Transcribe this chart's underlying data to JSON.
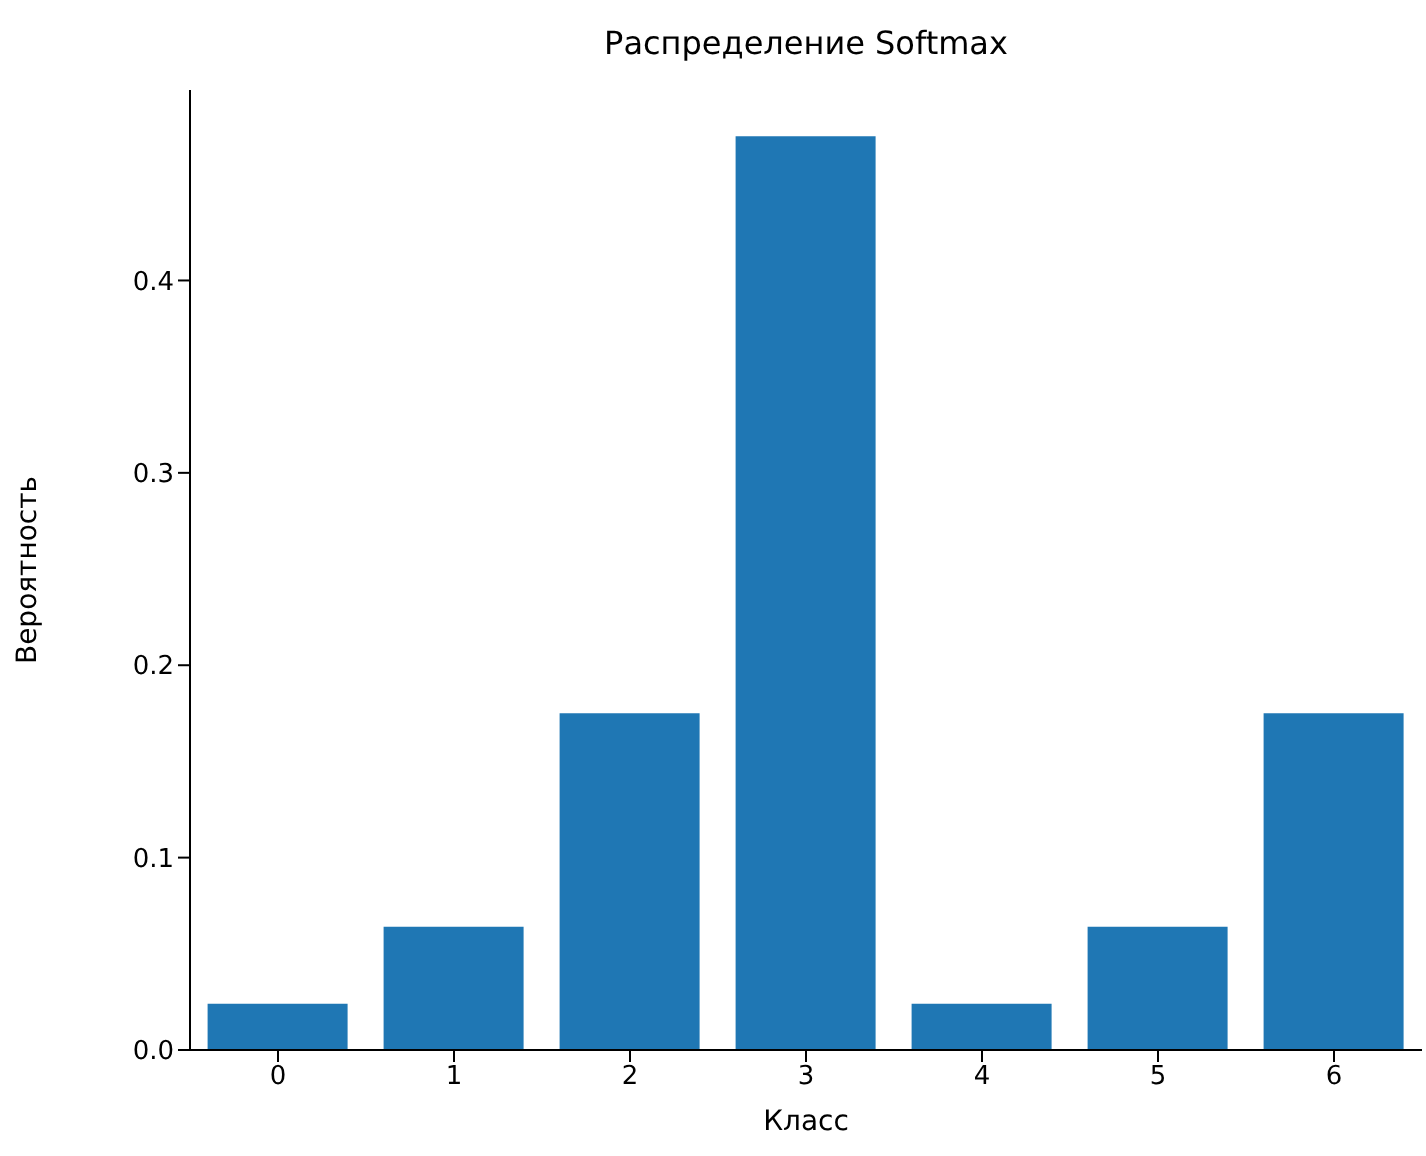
{
  "chart_data": {
    "type": "bar",
    "title": "Распределение Softmax",
    "xlabel": "Класс",
    "ylabel": "Вероятность",
    "categories": [
      "0",
      "1",
      "2",
      "3",
      "4",
      "5",
      "6"
    ],
    "values": [
      0.024,
      0.064,
      0.175,
      0.475,
      0.024,
      0.064,
      0.175
    ],
    "color": "#1f77b4",
    "ylim": [
      0,
      0.499
    ],
    "yticks": [
      {
        "value": 0,
        "label": "0.0"
      },
      {
        "value": 0.1,
        "label": "0.1"
      },
      {
        "value": 0.2,
        "label": "0.2"
      },
      {
        "value": 0.3,
        "label": "0.3"
      },
      {
        "value": 0.4,
        "label": "0.4"
      }
    ],
    "grid": false,
    "legend": false
  }
}
